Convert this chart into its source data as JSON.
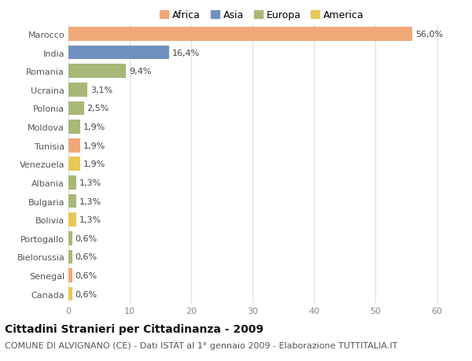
{
  "categories": [
    "Marocco",
    "India",
    "Romania",
    "Ucraina",
    "Polonia",
    "Moldova",
    "Tunisia",
    "Venezuela",
    "Albania",
    "Bulgaria",
    "Bolivia",
    "Portogallo",
    "Bielorussia",
    "Senegal",
    "Canada"
  ],
  "values": [
    56.0,
    16.4,
    9.4,
    3.1,
    2.5,
    1.9,
    1.9,
    1.9,
    1.3,
    1.3,
    1.3,
    0.6,
    0.6,
    0.6,
    0.6
  ],
  "labels": [
    "56,0%",
    "16,4%",
    "9,4%",
    "3,1%",
    "2,5%",
    "1,9%",
    "1,9%",
    "1,9%",
    "1,3%",
    "1,3%",
    "1,3%",
    "0,6%",
    "0,6%",
    "0,6%",
    "0,6%"
  ],
  "continents": [
    "Africa",
    "Asia",
    "Europa",
    "Europa",
    "Europa",
    "Europa",
    "Africa",
    "America",
    "Europa",
    "Europa",
    "America",
    "Europa",
    "Europa",
    "Africa",
    "America"
  ],
  "continent_colors": {
    "Africa": "#F0A878",
    "Asia": "#7090C0",
    "Europa": "#A8B878",
    "America": "#E8C858"
  },
  "legend_order": [
    "Africa",
    "Asia",
    "Europa",
    "America"
  ],
  "title": "Cittadini Stranieri per Cittadinanza - 2009",
  "subtitle": "COMUNE DI ALVIGNANO (CE) - Dati ISTAT al 1° gennaio 2009 - Elaborazione TUTTITALIA.IT",
  "xlim": [
    0,
    63
  ],
  "xticks": [
    0,
    10,
    20,
    30,
    40,
    50,
    60
  ],
  "background_color": "#ffffff",
  "grid_color": "#dddddd",
  "bar_height": 0.75,
  "title_fontsize": 10,
  "subtitle_fontsize": 8,
  "label_fontsize": 8,
  "tick_fontsize": 8,
  "legend_fontsize": 9
}
